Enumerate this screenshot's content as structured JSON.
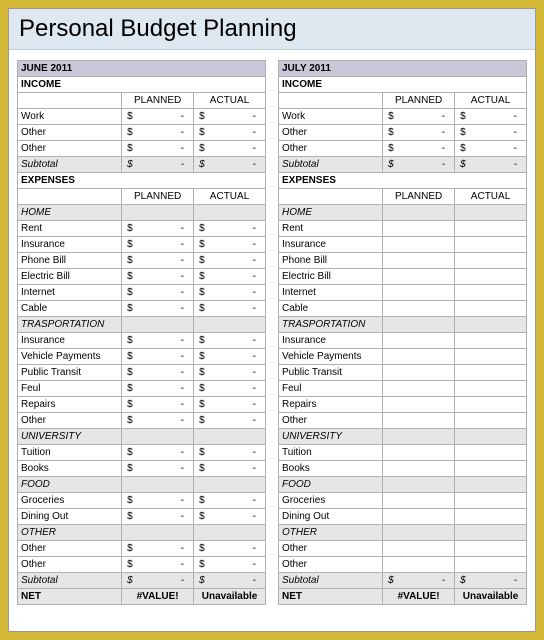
{
  "title": "Personal Budget Planning",
  "columns": {
    "planned": "PLANNED",
    "actual": "ACTUAL"
  },
  "currency": "$",
  "dash": "-",
  "section_income": "INCOME",
  "section_expenses": "EXPENSES",
  "subtotal_label": "Subtotal",
  "net_label": "NET",
  "net_value": "#VALUE!",
  "net_unavail": "Unavailable",
  "months": [
    {
      "name": "JUNE 2011",
      "income": [
        "Work",
        "Other",
        "Other"
      ],
      "cats": [
        {
          "name": "HOME",
          "items": [
            "Rent",
            "Insurance",
            "Phone Bill",
            "Electric Bill",
            "Internet",
            "Cable"
          ]
        },
        {
          "name": "TRASPORTATION",
          "items": [
            "Insurance",
            "Vehicle Payments",
            "Public Transit",
            "Feul",
            "Repairs",
            "Other"
          ]
        },
        {
          "name": "UNIVERSITY",
          "items": [
            "Tuition",
            "Books"
          ]
        },
        {
          "name": "FOOD",
          "items": [
            "Groceries",
            "Dining Out"
          ]
        },
        {
          "name": "OTHER",
          "items": [
            "Other",
            "Other"
          ]
        }
      ]
    },
    {
      "name": "JULY 2011",
      "income": [
        "Work",
        "Other",
        "Other"
      ],
      "cats": [
        {
          "name": "HOME",
          "items": [
            "Rent",
            "Insurance",
            "Phone Bill",
            "Electric Bill",
            "Internet",
            "Cable"
          ]
        },
        {
          "name": "TRASPORTATION",
          "items": [
            "Insurance",
            "Vehicle Payments",
            "Public Transit",
            "Feul",
            "Repairs",
            "Other"
          ]
        },
        {
          "name": "UNIVERSITY",
          "items": [
            "Tuition",
            "Books"
          ]
        },
        {
          "name": "FOOD",
          "items": [
            "Groceries",
            "Dining Out"
          ]
        },
        {
          "name": "OTHER",
          "items": [
            "Other",
            "Other"
          ]
        }
      ]
    }
  ],
  "colors": {
    "frame": "#d4b838",
    "titlebar": "#dde8f0",
    "month_header": "#c8c8d8",
    "cat_bg": "#e6e6e6",
    "grid": "#b0b0b0"
  }
}
